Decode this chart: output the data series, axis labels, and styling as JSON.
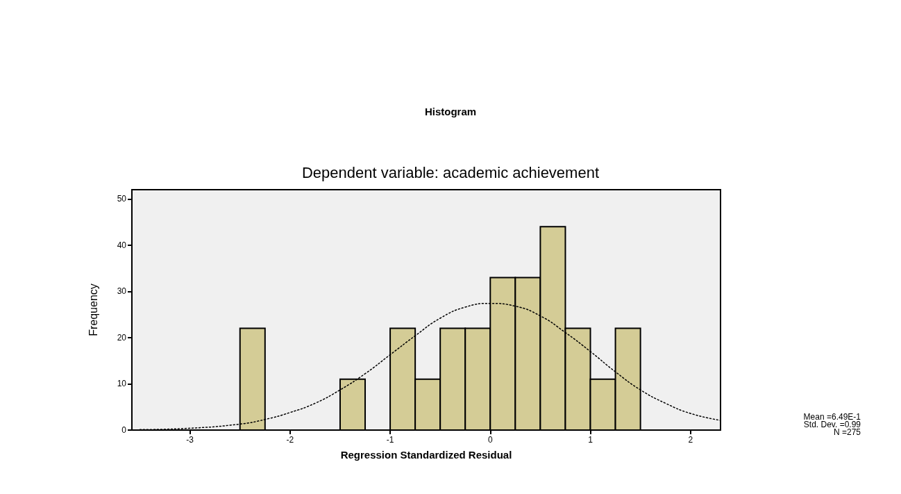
{
  "chart_data": {
    "type": "histogram",
    "title": "Histogram",
    "subtitle": "Dependent variable: academic achievement",
    "xlabel": "Regression Standardized Residual",
    "ylabel": "Frequency",
    "xlim": [
      -3.58,
      2.3
    ],
    "xticks": [
      -3,
      -2,
      -1,
      0,
      1,
      2
    ],
    "ylim": [
      0,
      52
    ],
    "yticks": [
      0,
      10,
      20,
      30,
      40,
      50
    ],
    "grid": false,
    "series": [
      {
        "color": "#d4cc96",
        "bins": [
          -2.5,
          -2.25,
          -2,
          -1.75,
          -1.5,
          -1.25,
          -1,
          -0.75,
          -0.5,
          -0.25,
          0,
          0.25,
          0.5,
          0.75,
          1,
          1.25,
          1.5
        ],
        "values": [
          22,
          0,
          0,
          0,
          11,
          0,
          22,
          11,
          22,
          22,
          33,
          33,
          44,
          22,
          11,
          22
        ]
      },
      {
        "type": "line",
        "color": "#000000",
        "line_style": "dotted",
        "x": [
          -3.5,
          -3,
          -2.5,
          -2.25,
          -2,
          -1.75,
          -1.5,
          -1.25,
          -1,
          -0.75,
          -0.5,
          -0.25,
          0,
          0.25,
          0.5,
          0.75,
          1,
          1.25,
          1.5,
          1.75,
          2,
          2.3
        ],
        "values": [
          0.1,
          0.4,
          1.3,
          2.3,
          3.8,
          5.8,
          8.7,
          12.2,
          16.3,
          20.4,
          24.2,
          26.6,
          27.4,
          26.8,
          24.7,
          21.1,
          17,
          12.6,
          8.7,
          5.8,
          3.6,
          2.1
        ]
      }
    ],
    "annotations": [
      "Mean =6.49E-1",
      "Std. Dev. =0.99",
      "N =275"
    ]
  }
}
